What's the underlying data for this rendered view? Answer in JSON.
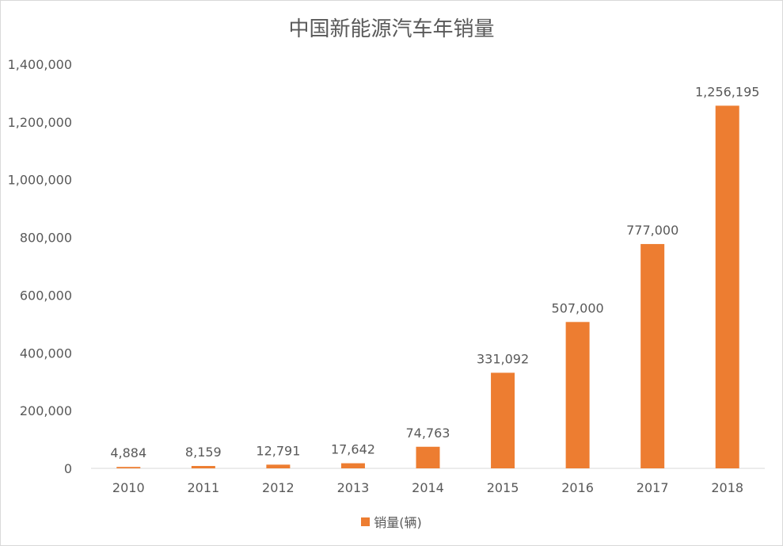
{
  "chart_data": {
    "type": "bar",
    "title": "中国新能源汽车年销量",
    "xlabel": "",
    "ylabel": "",
    "categories": [
      "2010",
      "2011",
      "2012",
      "2013",
      "2014",
      "2015",
      "2016",
      "2017",
      "2018"
    ],
    "series": [
      {
        "name": "销量(辆)",
        "values": [
          4884,
          8159,
          12791,
          17642,
          74763,
          331092,
          507000,
          777000,
          1256195
        ],
        "data_labels": [
          "4,884",
          "8,159",
          "12,791",
          "17,642",
          "74,763",
          "331,092",
          "507,000",
          "777,000",
          "1,256,195"
        ],
        "color": "#ED7D31"
      }
    ],
    "ylim": [
      0,
      1400000
    ],
    "y_ticks": [
      0,
      200000,
      400000,
      600000,
      800000,
      1000000,
      1200000,
      1400000
    ],
    "y_tick_labels": [
      "0",
      "200,000",
      "400,000",
      "600,000",
      "800,000",
      "1,000,000",
      "1,200,000",
      "1,400,000"
    ],
    "grid": false,
    "legend": "bottom",
    "colors": {
      "text": "#595959",
      "axis": "#d9d9d9"
    }
  }
}
